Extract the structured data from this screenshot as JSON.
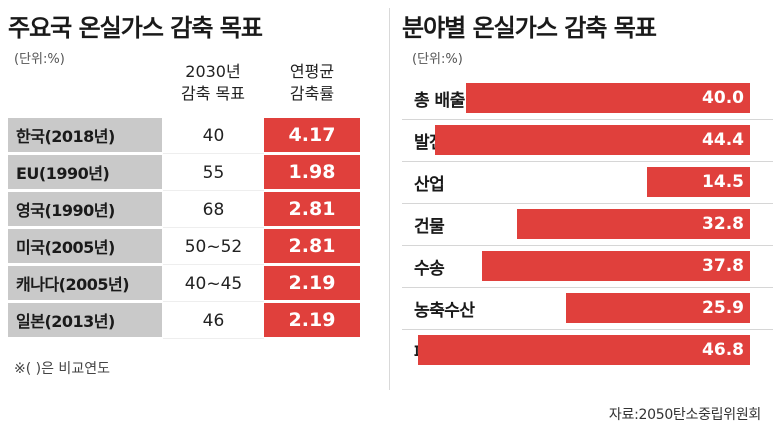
{
  "table": {
    "title": "주요국 온실가스 감축 목표",
    "unit": "(단위:%)",
    "headers": {
      "target": [
        "2030년",
        "감축 목표"
      ],
      "rate": [
        "연평균",
        "감축률"
      ]
    },
    "rows": [
      {
        "country": "한국(2018년)",
        "target": "40",
        "rate": "4.17"
      },
      {
        "country": "EU(1990년)",
        "target": "55",
        "rate": "1.98"
      },
      {
        "country": "영국(1990년)",
        "target": "68",
        "rate": "2.81"
      },
      {
        "country": "미국(2005년)",
        "target": "50~52",
        "rate": "2.81"
      },
      {
        "country": "캐나다(2005년)",
        "target": "40~45",
        "rate": "2.19"
      },
      {
        "country": "일본(2013년)",
        "target": "46",
        "rate": "2.19"
      }
    ],
    "note": "※( )은 비교연도"
  },
  "chart_data": {
    "type": "bar",
    "orientation": "horizontal",
    "title": "분야별 온실가스 감축 목표",
    "unit": "(단위:%)",
    "categories": [
      "총 배출량",
      "발전등에너지공급",
      "산업",
      "건물",
      "수송",
      "농축수산",
      "폐기물"
    ],
    "values": [
      40.0,
      44.4,
      14.5,
      32.8,
      37.8,
      25.9,
      46.8
    ],
    "value_labels": [
      "40.0",
      "44.4",
      "14.5",
      "32.8",
      "37.8",
      "25.9",
      "46.8"
    ],
    "xlim": [
      0,
      50
    ],
    "bar_color": "#e0403c",
    "grid": false,
    "legend": "none"
  },
  "source": "자료:2050탄소중립위원회",
  "colors": {
    "accent": "#e0403c",
    "label_bg": "#c9c9c9"
  }
}
